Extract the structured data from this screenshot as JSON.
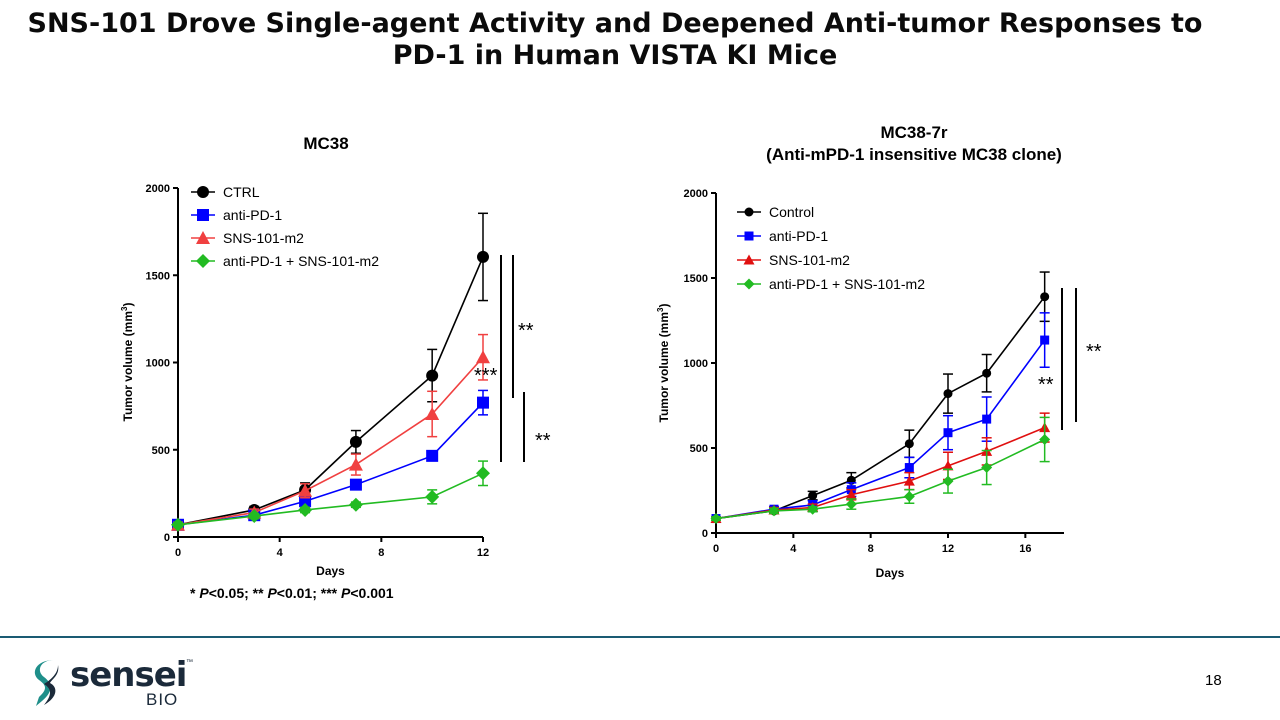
{
  "slide": {
    "title": "SNS-101 Drove Single-agent Activity and Deepened Anti-tumor Responses to PD-1 in Human VISTA KI Mice",
    "footnote_parts": [
      "* ",
      "P",
      "<0.05; ** ",
      "P",
      "<0.01; *** ",
      "P",
      "<0.001"
    ],
    "page_number": "18",
    "logo": {
      "word": "sensei",
      "tm": "™",
      "sub": "BIO"
    },
    "colors": {
      "black": "#000000",
      "blue": "#0000ff",
      "red_left": "#f04040",
      "red_right": "#e01010",
      "green": "#22bb22",
      "brand": "#1a5b73"
    }
  },
  "chart_data": [
    {
      "type": "line",
      "title": "MC38",
      "xlabel": "Days",
      "ylabel": "Tumor volume (mm³)",
      "ylabel_base": "Tumor volume (mm",
      "ylabel_sup": "3",
      "ylabel_close": ")",
      "xlim": [
        0,
        12
      ],
      "ylim": [
        0,
        2000
      ],
      "xticks": [
        0,
        4,
        8,
        12
      ],
      "yticks": [
        0,
        500,
        1000,
        1500,
        2000
      ],
      "legend_position": "top-left",
      "series": [
        {
          "name": "CTRL",
          "color": "#000000",
          "marker": "circle",
          "x": [
            0,
            3,
            5,
            7,
            10,
            12
          ],
          "y": [
            70,
            155,
            270,
            545,
            925,
            1605
          ],
          "err": [
            15,
            20,
            40,
            65,
            150,
            250
          ]
        },
        {
          "name": "anti-PD-1",
          "color": "#0000ff",
          "marker": "square",
          "x": [
            0,
            3,
            5,
            7,
            10,
            12
          ],
          "y": [
            70,
            125,
            205,
            300,
            465,
            770
          ],
          "err": [
            15,
            15,
            25,
            25,
            25,
            70
          ]
        },
        {
          "name": "SNS-101-m2",
          "color": "#f04040",
          "marker": "triangle",
          "x": [
            0,
            3,
            5,
            7,
            10,
            12
          ],
          "y": [
            70,
            140,
            265,
            415,
            705,
            1030
          ],
          "err": [
            15,
            20,
            40,
            60,
            130,
            130
          ]
        },
        {
          "name": "anti-PD-1 + SNS-101-m2",
          "color": "#22bb22",
          "marker": "diamond",
          "x": [
            0,
            3,
            5,
            7,
            10,
            12
          ],
          "y": [
            70,
            120,
            155,
            185,
            230,
            365
          ],
          "err": [
            10,
            15,
            15,
            15,
            40,
            70
          ]
        }
      ],
      "annotations": [
        "**",
        "***",
        "**"
      ]
    },
    {
      "type": "line",
      "title": "MC38-7r",
      "subtitle": "(Anti-mPD-1 insensitive MC38 clone)",
      "xlabel": "Days",
      "ylabel": "Tumor volume (mm³)",
      "ylabel_base": "Tumor volume (mm",
      "ylabel_sup": "3",
      "ylabel_close": ")",
      "xlim": [
        0,
        18
      ],
      "ylim": [
        0,
        2000
      ],
      "xticks": [
        0,
        4,
        8,
        12,
        16
      ],
      "yticks": [
        0,
        500,
        1000,
        1500,
        2000
      ],
      "legend_position": "top-left",
      "series": [
        {
          "name": "Control",
          "color": "#000000",
          "marker": "circle",
          "x": [
            0,
            3,
            5,
            7,
            10,
            12,
            14,
            17
          ],
          "y": [
            85,
            130,
            220,
            310,
            525,
            820,
            940,
            1390
          ],
          "err": [
            10,
            15,
            25,
            45,
            80,
            115,
            110,
            145
          ]
        },
        {
          "name": "anti-PD-1",
          "color": "#0000ff",
          "marker": "square",
          "x": [
            0,
            3,
            5,
            7,
            10,
            12,
            14,
            17
          ],
          "y": [
            85,
            140,
            165,
            255,
            385,
            590,
            670,
            1135
          ],
          "err": [
            10,
            15,
            25,
            40,
            60,
            100,
            130,
            160
          ]
        },
        {
          "name": "SNS-101-m2",
          "color": "#e01010",
          "marker": "triangle",
          "x": [
            0,
            3,
            5,
            7,
            10,
            12,
            14,
            17
          ],
          "y": [
            85,
            135,
            150,
            225,
            305,
            395,
            480,
            620
          ],
          "err": [
            10,
            15,
            20,
            30,
            50,
            80,
            80,
            85
          ]
        },
        {
          "name": "anti-PD-1 + SNS-101-m2",
          "color": "#22bb22",
          "marker": "diamond",
          "x": [
            0,
            3,
            5,
            7,
            10,
            12,
            14,
            17
          ],
          "y": [
            85,
            130,
            140,
            170,
            215,
            305,
            385,
            550
          ],
          "err": [
            10,
            15,
            15,
            30,
            40,
            70,
            100,
            130
          ]
        }
      ],
      "annotations": [
        "**",
        "**"
      ]
    }
  ]
}
